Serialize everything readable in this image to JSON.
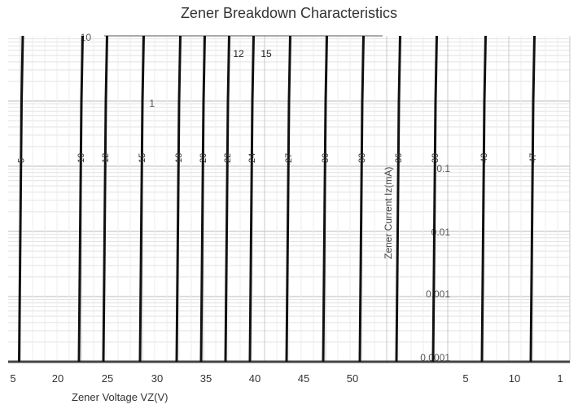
{
  "chart_data": {
    "type": "line",
    "title": "Zener Breakdown Characteristics",
    "xlabel": "Zener Voltage    VZ(V)",
    "ylabel": "Zener Current    Iz(mA)",
    "y_scale": "log",
    "y_ticks": [
      "10",
      "1",
      "0.1",
      "0.01",
      "0.001",
      "0.0001"
    ],
    "x_ticks_left": [
      "5",
      "20",
      "25",
      "30",
      "35",
      "40",
      "45",
      "50"
    ],
    "x_ticks_right": [
      "5",
      "10",
      "1"
    ],
    "top_labels": [
      "12",
      "15"
    ],
    "series": [
      {
        "label": "5",
        "x": [
          4.9,
          5.0,
          5.1,
          5.2
        ],
        "y": [
          0.0001,
          0.01,
          1,
          10
        ]
      },
      {
        "label": "10",
        "x": [
          9.8,
          9.9,
          10.0,
          10.1
        ],
        "y": [
          0.0001,
          0.01,
          1,
          10
        ]
      },
      {
        "label": "12",
        "x": [
          11.8,
          11.9,
          12.0,
          12.1
        ],
        "y": [
          0.0001,
          0.01,
          1,
          10
        ]
      },
      {
        "label": "15",
        "x": [
          14.8,
          14.9,
          15.0,
          15.1
        ],
        "y": [
          0.0001,
          0.01,
          1,
          10
        ]
      },
      {
        "label": "18",
        "x": [
          17.8,
          17.9,
          18.0,
          18.1
        ],
        "y": [
          0.0001,
          0.01,
          1,
          10
        ]
      },
      {
        "label": "20",
        "x": [
          19.8,
          19.9,
          20.0,
          20.1
        ],
        "y": [
          0.0001,
          0.01,
          1,
          10
        ]
      },
      {
        "label": "22",
        "x": [
          21.8,
          21.9,
          22.0,
          22.1
        ],
        "y": [
          0.0001,
          0.01,
          1,
          10
        ]
      },
      {
        "label": "24",
        "x": [
          23.8,
          23.9,
          24.0,
          24.1
        ],
        "y": [
          0.0001,
          0.01,
          1,
          10
        ]
      },
      {
        "label": "27",
        "x": [
          26.8,
          26.9,
          27.0,
          27.1
        ],
        "y": [
          0.0001,
          0.01,
          1,
          10
        ]
      },
      {
        "label": "30",
        "x": [
          29.8,
          29.9,
          30.0,
          30.1
        ],
        "y": [
          0.0001,
          0.01,
          1,
          10
        ]
      },
      {
        "label": "33",
        "x": [
          32.8,
          32.9,
          33.0,
          33.1
        ],
        "y": [
          0.0001,
          0.01,
          1,
          10
        ]
      },
      {
        "label": "36",
        "x": [
          35.8,
          35.9,
          36.0,
          36.1
        ],
        "y": [
          0.0001,
          0.01,
          1,
          10
        ]
      },
      {
        "label": "39",
        "x": [
          38.8,
          38.9,
          39.0,
          39.1
        ],
        "y": [
          0.0001,
          0.01,
          1,
          10
        ]
      },
      {
        "label": "43",
        "x": [
          42.8,
          42.9,
          43.0,
          43.1
        ],
        "y": [
          0.0001,
          0.01,
          1,
          10
        ]
      },
      {
        "label": "47",
        "x": [
          46.8,
          46.9,
          47.0,
          47.1
        ],
        "y": [
          0.0001,
          0.01,
          1,
          10
        ]
      }
    ]
  }
}
